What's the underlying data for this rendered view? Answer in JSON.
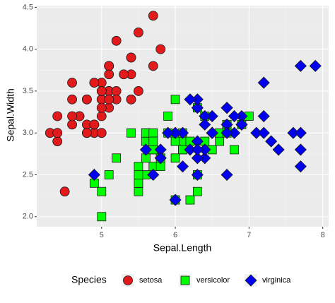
{
  "chart_data": {
    "type": "scatter",
    "x_label": "Sepal.Length",
    "y_label": "Sepal.Width",
    "legend_title": "Species",
    "legend_position": "bottom",
    "grid": true,
    "xlim": [
      4.12,
      8.08
    ],
    "ylim": [
      1.88,
      4.52
    ],
    "xticks": [
      5,
      6,
      7,
      8
    ],
    "yticks": [
      {
        "value": 2.0,
        "label": "2.0"
      },
      {
        "value": 2.5,
        "label": "2.5"
      },
      {
        "value": 3.0,
        "label": "3.0"
      },
      {
        "value": 3.5,
        "label": "3.5"
      },
      {
        "value": 4.0,
        "label": "4.0"
      },
      {
        "value": 4.5,
        "label": "4.5"
      }
    ],
    "series": [
      {
        "name": "setosa",
        "color": "#e31a1c",
        "shape": "circle",
        "x": [
          5.1,
          4.9,
          4.7,
          4.6,
          5.0,
          5.4,
          4.6,
          5.0,
          4.4,
          4.9,
          5.4,
          4.8,
          4.8,
          4.3,
          5.8,
          5.7,
          5.4,
          5.1,
          5.7,
          5.1,
          5.4,
          5.1,
          4.6,
          5.1,
          4.8,
          5.0,
          5.0,
          5.2,
          5.2,
          4.7,
          4.8,
          5.4,
          5.2,
          5.5,
          4.9,
          5.0,
          5.5,
          4.9,
          4.4,
          5.1,
          5.0,
          4.5,
          4.4,
          5.0,
          5.1,
          4.8,
          5.1,
          4.6,
          5.3,
          5.0
        ],
        "values": [
          3.5,
          3.0,
          3.2,
          3.1,
          3.6,
          3.9,
          3.4,
          3.4,
          2.9,
          3.1,
          3.7,
          3.4,
          3.0,
          3.0,
          4.0,
          4.4,
          3.9,
          3.5,
          3.8,
          3.8,
          3.4,
          3.7,
          3.6,
          3.3,
          3.4,
          3.0,
          3.4,
          3.5,
          3.4,
          3.2,
          3.1,
          3.4,
          4.1,
          4.2,
          3.1,
          3.2,
          3.5,
          3.6,
          3.0,
          3.4,
          3.5,
          2.3,
          3.2,
          3.5,
          3.8,
          3.0,
          3.8,
          3.2,
          3.7,
          3.3
        ]
      },
      {
        "name": "versicolor",
        "color": "#00ff00",
        "shape": "square",
        "x": [
          7.0,
          6.4,
          6.9,
          5.5,
          6.5,
          5.7,
          6.3,
          4.9,
          6.6,
          5.2,
          5.0,
          5.9,
          6.0,
          6.1,
          5.6,
          6.7,
          5.6,
          5.8,
          6.2,
          5.6,
          5.9,
          6.1,
          6.3,
          6.1,
          6.4,
          6.6,
          6.8,
          6.7,
          6.0,
          5.7,
          5.5,
          5.5,
          5.8,
          6.0,
          5.4,
          6.0,
          6.7,
          6.3,
          5.6,
          5.5,
          5.5,
          6.1,
          5.8,
          5.0,
          5.6,
          5.7,
          5.7,
          6.2,
          5.1,
          5.7
        ],
        "values": [
          3.2,
          3.2,
          3.1,
          2.3,
          2.8,
          2.8,
          3.3,
          2.4,
          2.9,
          2.7,
          2.0,
          3.0,
          2.2,
          2.9,
          2.9,
          3.1,
          3.0,
          2.7,
          2.2,
          2.5,
          3.2,
          2.8,
          2.5,
          2.8,
          2.9,
          3.0,
          2.8,
          3.0,
          2.9,
          2.6,
          2.4,
          2.4,
          2.7,
          2.7,
          3.0,
          3.4,
          3.1,
          2.3,
          3.0,
          2.5,
          2.6,
          3.0,
          2.6,
          2.3,
          2.7,
          3.0,
          2.9,
          2.9,
          2.5,
          2.8
        ]
      },
      {
        "name": "virginica",
        "color": "#0000ee",
        "shape": "diamond",
        "x": [
          6.3,
          5.8,
          7.1,
          6.3,
          6.5,
          7.6,
          4.9,
          7.3,
          6.7,
          7.2,
          6.5,
          6.4,
          6.8,
          5.7,
          5.8,
          6.4,
          6.5,
          7.7,
          7.7,
          6.0,
          6.9,
          5.6,
          7.7,
          6.3,
          6.7,
          7.2,
          6.2,
          6.1,
          6.4,
          7.2,
          7.4,
          7.9,
          6.4,
          6.3,
          6.1,
          7.7,
          6.3,
          6.4,
          6.0,
          6.9,
          6.7,
          6.9,
          5.8,
          6.8,
          6.7,
          6.7,
          6.3,
          6.5,
          6.2,
          5.9
        ],
        "values": [
          3.3,
          2.7,
          3.0,
          2.9,
          3.0,
          3.0,
          2.5,
          2.9,
          2.5,
          3.6,
          3.2,
          2.7,
          3.0,
          2.5,
          2.8,
          3.2,
          3.0,
          3.8,
          2.6,
          2.2,
          3.2,
          2.8,
          2.8,
          2.7,
          3.3,
          3.2,
          2.8,
          3.0,
          2.8,
          3.0,
          2.8,
          3.8,
          2.8,
          2.8,
          2.6,
          3.0,
          3.4,
          3.1,
          3.0,
          3.1,
          3.1,
          3.1,
          2.7,
          3.2,
          3.3,
          3.0,
          2.5,
          3.0,
          3.4,
          3.0
        ]
      }
    ]
  }
}
